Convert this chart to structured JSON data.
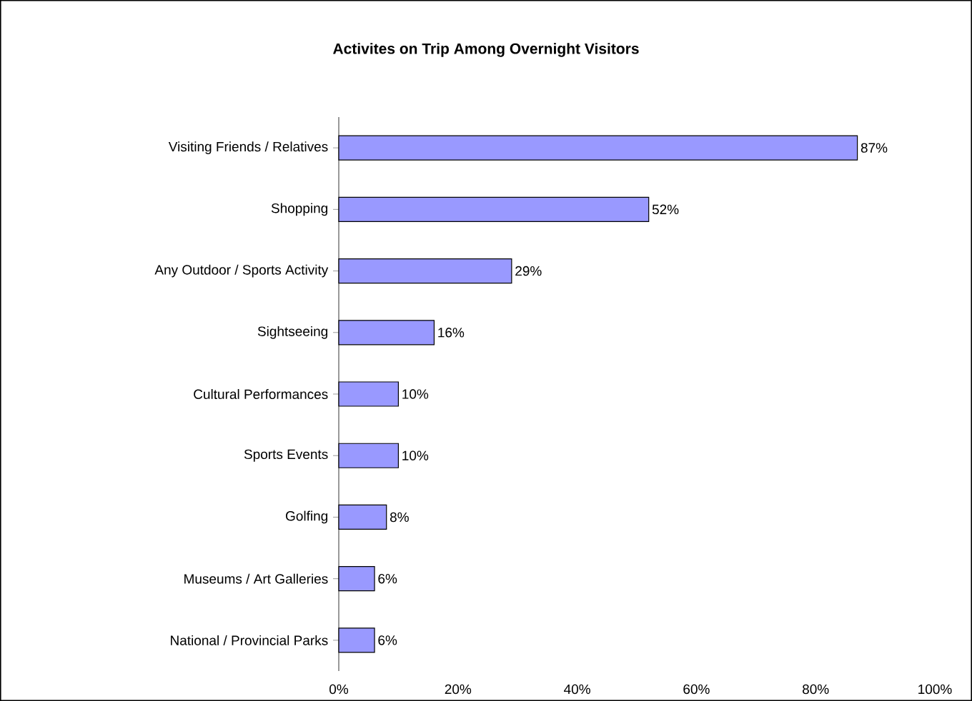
{
  "chart_data": {
    "type": "bar",
    "orientation": "horizontal",
    "title": "Activites on Trip Among Overnight Visitors",
    "categories": [
      "Visiting Friends / Relatives",
      "Shopping",
      "Any Outdoor / Sports Activity",
      "Sightseeing",
      "Cultural Performances",
      "Sports Events",
      "Golfing",
      "Museums / Art Galleries",
      "National / Provincial Parks"
    ],
    "values": [
      87,
      52,
      29,
      16,
      10,
      10,
      8,
      6,
      6
    ],
    "value_labels": [
      "87%",
      "52%",
      "29%",
      "16%",
      "10%",
      "10%",
      "8%",
      "6%",
      "6%"
    ],
    "color": "#9999ff",
    "xlim": [
      0,
      100
    ],
    "xticks": [
      {
        "value": 0,
        "label": "0%"
      },
      {
        "value": 20,
        "label": "20%"
      },
      {
        "value": 40,
        "label": "40%"
      },
      {
        "value": 60,
        "label": "60%"
      },
      {
        "value": 80,
        "label": "80%"
      },
      {
        "value": 100,
        "label": "100%"
      }
    ],
    "grid": false
  }
}
